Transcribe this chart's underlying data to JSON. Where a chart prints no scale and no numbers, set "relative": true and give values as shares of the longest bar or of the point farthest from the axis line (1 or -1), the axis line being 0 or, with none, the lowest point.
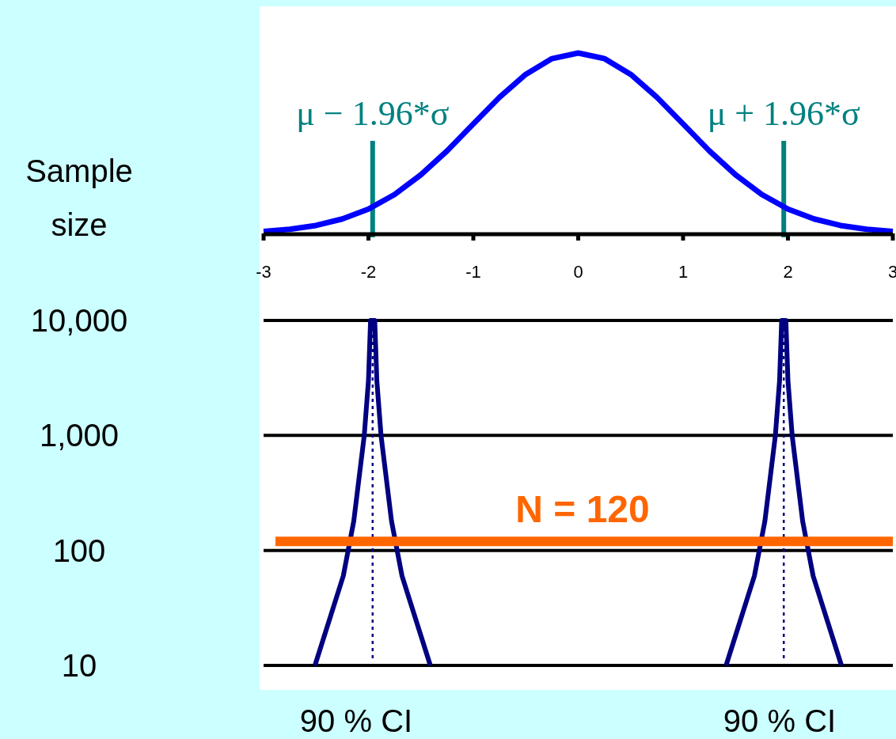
{
  "chart_data": [
    {
      "type": "line",
      "relative": true,
      "color": "#0000ff",
      "x": [
        -3,
        -2.75,
        -2.5,
        -2.25,
        -2,
        -1.75,
        -1.5,
        -1.25,
        -1,
        -0.75,
        -0.5,
        -0.25,
        0,
        0.25,
        0.5,
        0.75,
        1,
        1.25,
        1.5,
        1.75,
        2,
        2.25,
        2.5,
        2.75,
        3
      ],
      "values": [
        0.011,
        0.023,
        0.044,
        0.08,
        0.135,
        0.216,
        0.325,
        0.458,
        0.607,
        0.755,
        0.882,
        0.969,
        1,
        0.969,
        0.882,
        0.755,
        0.607,
        0.458,
        0.325,
        0.216,
        0.135,
        0.08,
        0.044,
        0.023,
        0.011
      ],
      "xlim": [
        -3,
        3
      ],
      "xticks": [
        -3,
        -2,
        -1,
        0,
        1,
        2,
        3
      ],
      "ref_lines": [
        {
          "axis": "x",
          "value": -1.96,
          "label": "μ − 1.96*σ",
          "color": "#008080"
        },
        {
          "axis": "x",
          "value": 1.96,
          "label": "μ + 1.96*σ",
          "color": "#008080"
        }
      ]
    },
    {
      "type": "line",
      "ylabel": "Sample size",
      "xlim": [
        -3,
        3
      ],
      "ylim": [
        10,
        10000
      ],
      "log": "y",
      "grid": "y",
      "tick_labels": "y",
      "yticks": [
        10,
        100,
        {
          "value": 1000,
          "label": "1,000"
        },
        {
          "value": 10000,
          "label": "10,000"
        }
      ],
      "series": [
        {
          "color": "#000080",
          "x": [
            -2.51,
            -2.24,
            -2.14,
            -2.04,
            -2.0,
            -1.98,
            -1.94,
            -1.92,
            -1.88,
            -1.78,
            -1.68,
            -1.41
          ],
          "values": [
            10,
            60,
            180,
            1000,
            3000,
            10000,
            10000,
            3000,
            1000,
            180,
            60,
            10
          ]
        },
        {
          "color": "#000080",
          "x": [
            1.41,
            1.68,
            1.78,
            1.88,
            1.92,
            1.94,
            1.98,
            2.0,
            2.04,
            2.14,
            2.24,
            2.51
          ],
          "values": [
            10,
            60,
            180,
            1000,
            3000,
            10000,
            10000,
            3000,
            1000,
            180,
            60,
            10
          ]
        }
      ],
      "ref_lines": [
        {
          "axis": "x",
          "value": -1.96,
          "line_style": "dotted",
          "color": "#000080"
        },
        {
          "axis": "x",
          "value": 1.96,
          "line_style": "dotted",
          "color": "#000080"
        },
        {
          "axis": "y",
          "value": 120,
          "label": "N = 120",
          "color": "#ff6600"
        }
      ],
      "annotations": [
        "90 % CI",
        "90 % CI"
      ]
    }
  ]
}
